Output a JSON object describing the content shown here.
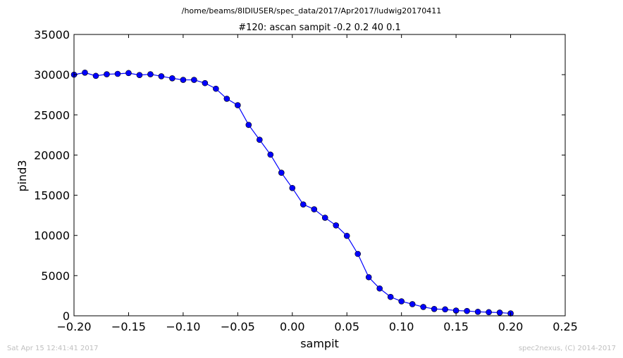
{
  "chart_data": {
    "type": "line",
    "suptitle": "/home/beams/8IDIUSER/spec_data/2017/Apr2017/ludwig20170411",
    "title": "#120: ascan  sampit -0.2 0.2  40 0.1",
    "xlabel": "sampit",
    "ylabel": "pind3",
    "xlim": [
      -0.2,
      0.25
    ],
    "ylim": [
      0,
      35000
    ],
    "xticks": [
      -0.2,
      -0.15,
      -0.1,
      -0.05,
      0.0,
      0.05,
      0.1,
      0.15,
      0.2,
      0.25
    ],
    "xtick_labels": [
      "−0.20",
      "−0.15",
      "−0.10",
      "−0.05",
      "0.00",
      "0.05",
      "0.10",
      "0.15",
      "0.20",
      "0.25"
    ],
    "yticks": [
      0,
      5000,
      10000,
      15000,
      20000,
      25000,
      30000,
      35000
    ],
    "ytick_labels": [
      "0",
      "5000",
      "10000",
      "15000",
      "20000",
      "25000",
      "30000",
      "35000"
    ],
    "grid": false,
    "series": [
      {
        "color": "#0000ff",
        "marker": "circle",
        "x": [
          -0.2,
          -0.19,
          -0.18,
          -0.17,
          -0.16,
          -0.15,
          -0.14,
          -0.13,
          -0.12,
          -0.11,
          -0.1,
          -0.09,
          -0.08,
          -0.07,
          -0.06,
          -0.05,
          -0.04,
          -0.03,
          -0.02,
          -0.01,
          0.0,
          0.01,
          0.02,
          0.03,
          0.04,
          0.05,
          0.06,
          0.07,
          0.08,
          0.09,
          0.1,
          0.11,
          0.12,
          0.13,
          0.14,
          0.15,
          0.16,
          0.17,
          0.18,
          0.19,
          0.2
        ],
        "y": [
          30000,
          30250,
          29850,
          30050,
          30100,
          30200,
          29950,
          30050,
          29800,
          29550,
          29350,
          29350,
          28950,
          28250,
          27000,
          26200,
          23750,
          21900,
          20050,
          17800,
          15900,
          13850,
          13250,
          12200,
          11250,
          9950,
          7700,
          4800,
          3400,
          2350,
          1800,
          1450,
          1100,
          850,
          800,
          650,
          600,
          500,
          450,
          400,
          300
        ]
      }
    ]
  },
  "footer": {
    "timestamp": "Sat Apr 15 12:41:41 2017",
    "credit": "spec2nexus, (C) 2014-2017"
  }
}
